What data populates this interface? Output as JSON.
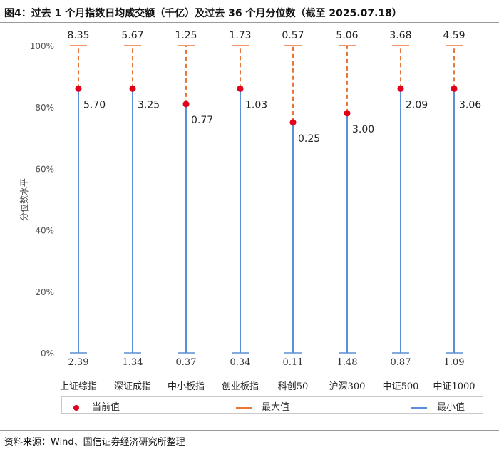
{
  "title": "图4：过去 1 个月指数日均成交额（千亿）及过去 36 个月分位数（截至 2025.07.18）",
  "source": "资料来源：Wind、国信证券经济研究所整理",
  "colors": {
    "current": "#e0001b",
    "max": "#e8753a",
    "min": "#5b8fd6"
  },
  "chart_data": {
    "type": "scatter",
    "ylabel": "分位数水平",
    "ylim": [
      0,
      100
    ],
    "yticks": [
      "0%",
      "20%",
      "40%",
      "60%",
      "80%",
      "100%"
    ],
    "categories": [
      "上证综指",
      "深证成指",
      "中小板指",
      "创业板指",
      "科创50",
      "沪深300",
      "中证500",
      "中证1000"
    ],
    "series": [
      {
        "name": "当前值",
        "percentile": [
          86,
          86,
          81,
          86,
          75,
          78,
          86,
          86
        ],
        "labels": [
          "5.70",
          "3.25",
          "0.77",
          "1.03",
          "0.25",
          "3.00",
          "2.09",
          "3.06"
        ]
      },
      {
        "name": "最大值",
        "percentile": [
          100,
          100,
          100,
          100,
          100,
          100,
          100,
          100
        ],
        "labels": [
          "8.35",
          "5.67",
          "1.25",
          "1.73",
          "0.57",
          "5.06",
          "3.68",
          "4.59"
        ]
      },
      {
        "name": "最小值",
        "percentile": [
          0,
          0,
          0,
          0,
          0,
          0,
          0,
          0
        ],
        "labels": [
          "2.39",
          "1.34",
          "0.37",
          "0.34",
          "0.11",
          "1.48",
          "0.87",
          "1.09"
        ]
      }
    ],
    "legend_position": "bottom"
  }
}
